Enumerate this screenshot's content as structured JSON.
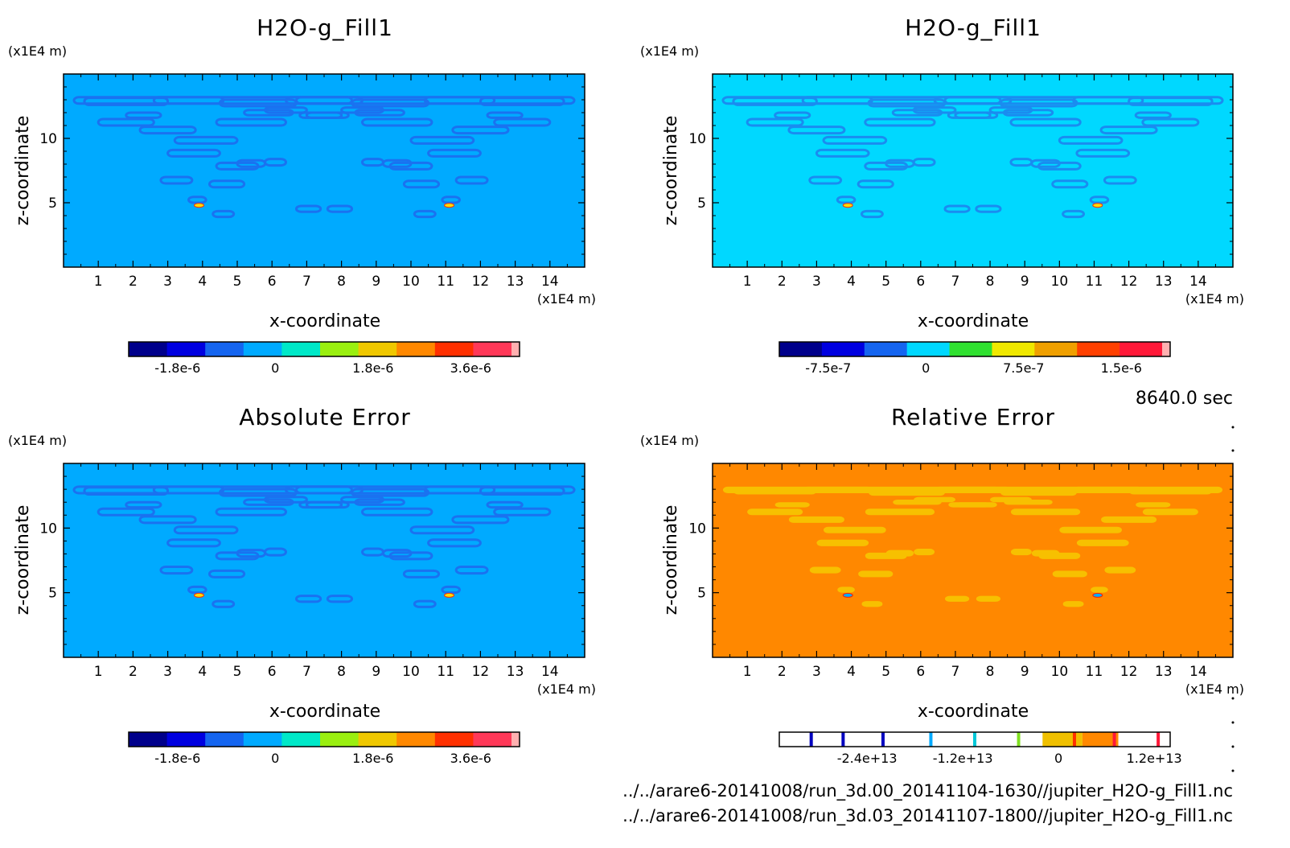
{
  "time_label": "8640.0 sec",
  "files": [
    "../../arare6-20141008/run_3d.00_20141104-1630//jupiter_H2O-g_Fill1.nc",
    "../../arare6-20141008/run_3d.03_20141107-1800//jupiter_H2O-g_Fill1.nc"
  ],
  "chart_data": [
    {
      "type": "heatmap",
      "title": "H2O-g_Fill1",
      "xlabel": "x-coordinate",
      "ylabel": "z-coordinate",
      "x_unit": "(x1E4 m)",
      "y_unit": "(x1E4 m)",
      "xlim": [
        0,
        15
      ],
      "ylim": [
        0,
        15
      ],
      "x_ticks": [
        1,
        2,
        3,
        4,
        5,
        6,
        7,
        8,
        9,
        10,
        11,
        12,
        13,
        14
      ],
      "y_ticks": [
        5,
        10
      ],
      "background_color": "#00aaff",
      "pattern_color": "#1a72f0",
      "colorbar": {
        "colors": [
          "#00008b",
          "#0000e0",
          "#1565f0",
          "#00aaff",
          "#00e8c8",
          "#9aef10",
          "#f0c800",
          "#ff8800",
          "#ff3000",
          "#ff3858",
          "#ffb0b0"
        ],
        "tick_labels": [
          "-1.8e-6",
          "0",
          "1.8e-6",
          "3.6e-6"
        ],
        "tick_values": [
          -1.8e-06,
          0,
          1.8e-06,
          3.6e-06
        ],
        "range": [
          -2.7e-06,
          4.5e-06
        ]
      }
    },
    {
      "type": "heatmap",
      "title": "H2O-g_Fill1",
      "xlabel": "x-coordinate",
      "ylabel": "z-coordinate",
      "x_unit": "(x1E4 m)",
      "y_unit": "(x1E4 m)",
      "xlim": [
        0,
        15
      ],
      "ylim": [
        0,
        15
      ],
      "x_ticks": [
        1,
        2,
        3,
        4,
        5,
        6,
        7,
        8,
        9,
        10,
        11,
        12,
        13,
        14
      ],
      "y_ticks": [
        5,
        10
      ],
      "background_color": "#00d8ff",
      "pattern_color": "#1a8cf0",
      "colorbar": {
        "colors": [
          "#00008b",
          "#0000e0",
          "#1565f0",
          "#00d8ff",
          "#30e030",
          "#f0e800",
          "#f0a000",
          "#ff4000",
          "#ff1838",
          "#ffb0b0"
        ],
        "tick_labels": [
          "-7.5e-7",
          "0",
          "7.5e-7",
          "1.5e-6"
        ],
        "tick_values": [
          -7.5e-07,
          0,
          7.5e-07,
          1.5e-06
        ],
        "range": [
          -1.125e-06,
          1.875e-06
        ]
      }
    },
    {
      "type": "heatmap",
      "title": "Absolute Error",
      "xlabel": "x-coordinate",
      "ylabel": "z-coordinate",
      "x_unit": "(x1E4 m)",
      "y_unit": "(x1E4 m)",
      "xlim": [
        0,
        15
      ],
      "ylim": [
        0,
        15
      ],
      "x_ticks": [
        1,
        2,
        3,
        4,
        5,
        6,
        7,
        8,
        9,
        10,
        11,
        12,
        13,
        14
      ],
      "y_ticks": [
        5,
        10
      ],
      "background_color": "#00aaff",
      "pattern_color": "#1a72f0",
      "colorbar": {
        "colors": [
          "#00008b",
          "#0000e0",
          "#1565f0",
          "#00aaff",
          "#00e8c8",
          "#9aef10",
          "#f0c800",
          "#ff8800",
          "#ff3000",
          "#ff3858",
          "#ffb0b0"
        ],
        "tick_labels": [
          "-1.8e-6",
          "0",
          "1.8e-6",
          "3.6e-6"
        ],
        "tick_values": [
          -1.8e-06,
          0,
          1.8e-06,
          3.6e-06
        ],
        "range": [
          -2.7e-06,
          4.5e-06
        ]
      }
    },
    {
      "type": "heatmap",
      "title": "Relative Error",
      "xlabel": "x-coordinate",
      "ylabel": "z-coordinate",
      "x_unit": "(x1E4 m)",
      "y_unit": "(x1E4 m)",
      "xlim": [
        0,
        15
      ],
      "ylim": [
        0,
        15
      ],
      "x_ticks": [
        1,
        2,
        3,
        4,
        5,
        6,
        7,
        8,
        9,
        10,
        11,
        12,
        13,
        14
      ],
      "y_ticks": [
        5,
        10
      ],
      "background_color": "#ff8800",
      "pattern_color": "#f7c000",
      "colorbar": {
        "style": "lines",
        "line_values": [
          -31000000000000.0,
          -27000000000000.0,
          -22000000000000.0,
          -16000000000000.0,
          -10500000000000.0,
          -5000000000000.0,
          2000000000000.0,
          7000000000000.0,
          12500000000000.0
        ],
        "line_colors": [
          "#0000c0",
          "#0000c0",
          "#0000c0",
          "#00aaff",
          "#00c8d8",
          "#80e020",
          "#ff3000",
          "#ff1838",
          "#ff1838"
        ],
        "bands": [
          {
            "from": -2000000000000.0,
            "to": 3000000000000.0,
            "color": "#f0c000"
          },
          {
            "from": 3000000000000.0,
            "to": 7500000000000.0,
            "color": "#ff8800"
          }
        ],
        "tick_labels": [
          "-2.4e+13",
          "-1.2e+13",
          "0",
          "1.2e+13"
        ],
        "tick_values": [
          -24000000000000.0,
          -12000000000000.0,
          0,
          12000000000000.0
        ],
        "range": [
          -35000000000000.0,
          14000000000000.0
        ]
      }
    }
  ]
}
